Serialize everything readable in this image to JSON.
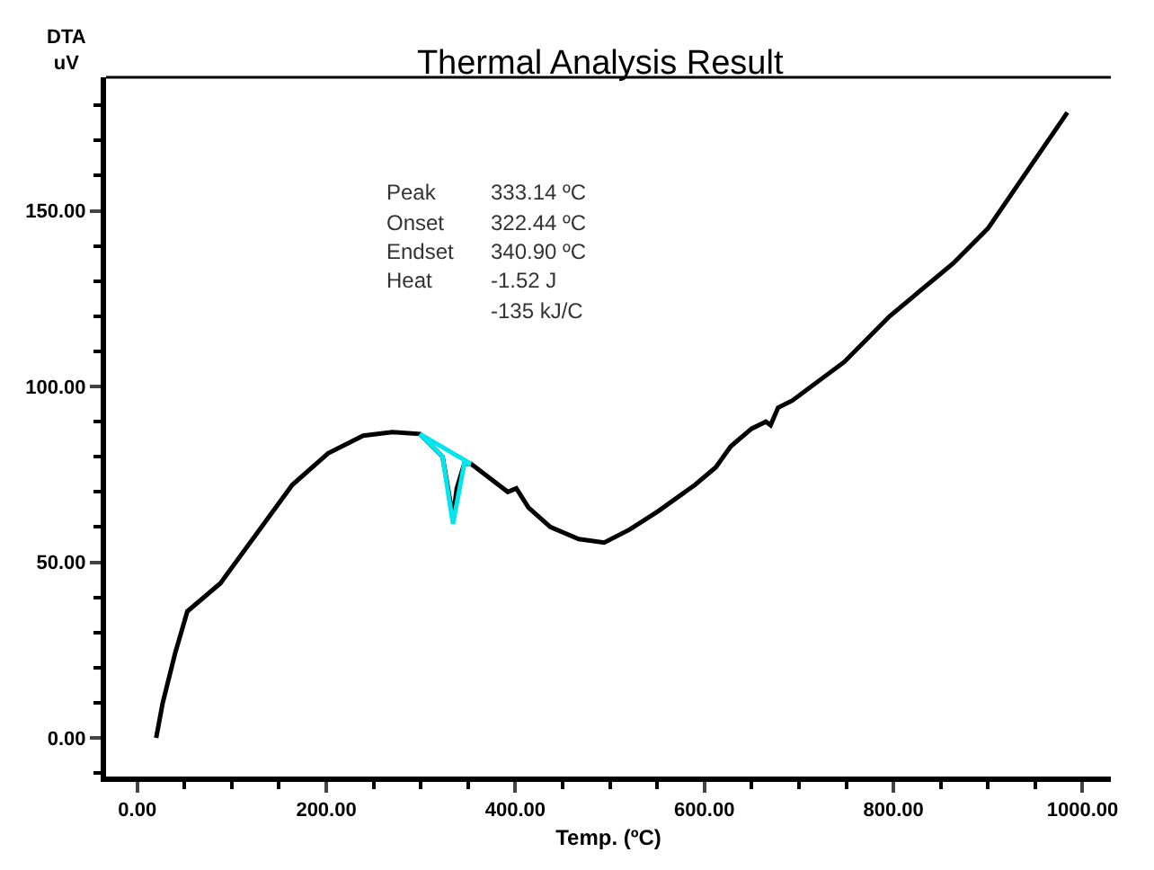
{
  "chart_data": {
    "type": "line",
    "title": "Thermal Analysis Result",
    "xlabel": "Temp. (ºC)",
    "ylabel": "DTA\nuV",
    "xlim": [
      -33,
      1030
    ],
    "ylim": [
      -11,
      188
    ],
    "xticks": [
      {
        "value": 0,
        "label": "0.00"
      },
      {
        "value": 200,
        "label": "200.00"
      },
      {
        "value": 400,
        "label": "400.00"
      },
      {
        "value": 600,
        "label": "600.00"
      },
      {
        "value": 800,
        "label": "800.00"
      },
      {
        "value": 1000,
        "label": "1000.00"
      }
    ],
    "yticks": [
      {
        "value": 0,
        "label": "0.00"
      },
      {
        "value": 50,
        "label": "50.00"
      },
      {
        "value": 100,
        "label": "100.00"
      },
      {
        "value": 150,
        "label": "150.00"
      }
    ],
    "marker": "none",
    "line_style": "solid",
    "annotations": [
      "Peak\t333.14 ºC",
      "Onset\t322.44 ºC",
      "Endset\t340.90 ºC",
      "Heat\t-1.52 J",
      "\t-135 kJ/C"
    ],
    "series": [
      {
        "color": "#000000",
        "x": [
          20,
          27,
          40,
          53,
          88,
          126,
          164,
          202,
          239,
          270,
          299,
          323,
          331,
          334,
          338,
          346,
          353,
          392,
          401,
          414,
          437,
          467,
          494,
          521,
          551,
          590,
          612,
          628,
          650,
          665,
          670,
          678,
          693,
          748,
          796,
          863,
          900,
          942,
          984
        ],
        "values": [
          0,
          10,
          24,
          36,
          44,
          58,
          72,
          81,
          86,
          87,
          86.5,
          80,
          67.5,
          62.5,
          71,
          78,
          78,
          70,
          71,
          65.5,
          60,
          56.6,
          55.6,
          59.3,
          64.5,
          72,
          77,
          83,
          88,
          90,
          89,
          94,
          96,
          107,
          120,
          135,
          145,
          161.5,
          178
        ]
      },
      {
        "color": "#00e5ee",
        "x": [
          299,
          323,
          334,
          346,
          353
        ],
        "values": [
          86.5,
          80,
          61,
          78,
          78
        ]
      },
      {
        "color": "#00e5ee",
        "x": [
          299,
          353
        ],
        "values": [
          86.5,
          78
        ]
      }
    ]
  }
}
